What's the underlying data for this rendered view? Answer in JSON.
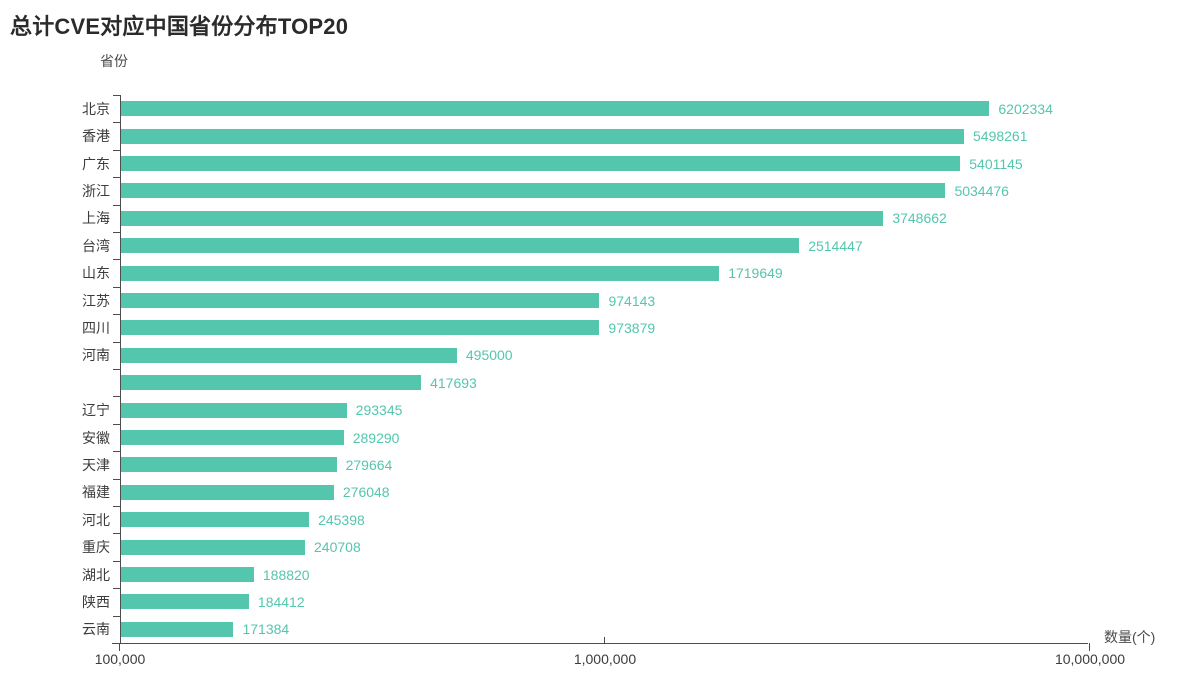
{
  "page": {
    "title": "总计CVE对应中国省份分布TOP20"
  },
  "colors": {
    "background": "#ffffff",
    "bar": "#54c6ae",
    "value_label": "#54c6ae",
    "title_text": "#2b2b2b",
    "category_label": "#3c3c3c",
    "tick_label": "#3c3c3c",
    "axis_title": "#4a4a4a",
    "axis_line": "#4d4d4d"
  },
  "chart_data": {
    "type": "bar",
    "orientation": "horizontal",
    "title": "总计CVE对应中国省份分布TOP20",
    "y_axis_title": "省份",
    "x_axis_title": "数量(个)",
    "x_scale": "log",
    "xlim": [
      100000,
      10000000
    ],
    "grid": false,
    "legend": false,
    "value_labels": "outside-end",
    "x_ticks": [
      {
        "value": 100000,
        "label": "100,000"
      },
      {
        "value": 1000000,
        "label": "1,000,000"
      },
      {
        "value": 10000000,
        "label": "10,000,000"
      }
    ],
    "categories": [
      "北京",
      "香港",
      "广东",
      "浙江",
      "上海",
      "台湾",
      "山东",
      "江苏",
      "四川",
      "河南",
      "",
      "辽宁",
      "安徽",
      "天津",
      "福建",
      "河北",
      "重庆",
      "湖北",
      "陕西",
      "云南"
    ],
    "values": [
      6202334,
      5498261,
      5401145,
      5034476,
      3748662,
      2514447,
      1719649,
      974143,
      973879,
      495000,
      417693,
      293345,
      289290,
      279664,
      276048,
      245398,
      240708,
      188820,
      184412,
      171384
    ]
  }
}
